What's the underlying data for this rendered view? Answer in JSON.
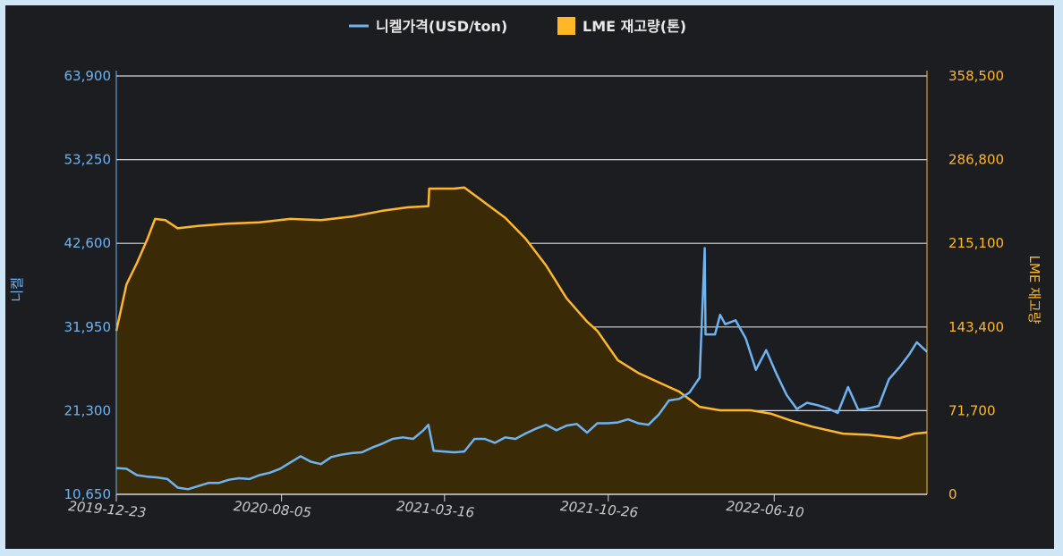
{
  "chart_data": {
    "type": "line",
    "legend": {
      "position": "top-center",
      "items": [
        {
          "label": "니켈가격(USD/ton)",
          "color": "#6fb3f0",
          "symbol": "line"
        },
        {
          "label": "LME 재고량(톤)",
          "color": "#ffb728",
          "symbol": "square"
        }
      ]
    },
    "y_left": {
      "label": "니켈",
      "ticks": [
        "63,900",
        "53,250",
        "42,600",
        "31,950",
        "21,300",
        "10,650"
      ],
      "range": [
        10650,
        63900
      ]
    },
    "y_right": {
      "label": "LME 재고량",
      "ticks": [
        "358,500",
        "286,800",
        "215,100",
        "143,400",
        "71,700",
        "0"
      ],
      "range": [
        0,
        358500
      ]
    },
    "x_axis": {
      "ticks": [
        "2019-12-23",
        "2020-08-05",
        "2021-03-16",
        "2021-10-26",
        "2022-06-10"
      ],
      "range": [
        "2019-12-23",
        "2023-01-05"
      ]
    },
    "grid": true,
    "series": [
      {
        "name": "니켈가격(USD/ton)",
        "type": "line",
        "axis": "left",
        "color": "#6fb3f0",
        "points": [
          [
            "2019-12-23",
            14000
          ],
          [
            "2020-01-06",
            13900
          ],
          [
            "2020-01-20",
            13100
          ],
          [
            "2020-02-03",
            12900
          ],
          [
            "2020-02-17",
            12800
          ],
          [
            "2020-03-02",
            12600
          ],
          [
            "2020-03-16",
            11500
          ],
          [
            "2020-03-30",
            11300
          ],
          [
            "2020-04-13",
            11700
          ],
          [
            "2020-04-27",
            12100
          ],
          [
            "2020-05-11",
            12100
          ],
          [
            "2020-05-25",
            12500
          ],
          [
            "2020-06-08",
            12700
          ],
          [
            "2020-06-22",
            12600
          ],
          [
            "2020-07-06",
            13100
          ],
          [
            "2020-07-20",
            13400
          ],
          [
            "2020-08-03",
            13900
          ],
          [
            "2020-08-17",
            14700
          ],
          [
            "2020-08-31",
            15500
          ],
          [
            "2020-09-14",
            14800
          ],
          [
            "2020-09-28",
            14500
          ],
          [
            "2020-10-12",
            15400
          ],
          [
            "2020-10-26",
            15700
          ],
          [
            "2020-11-09",
            15900
          ],
          [
            "2020-11-23",
            16000
          ],
          [
            "2020-12-07",
            16600
          ],
          [
            "2020-12-21",
            17100
          ],
          [
            "2021-01-04",
            17700
          ],
          [
            "2021-01-18",
            17900
          ],
          [
            "2021-02-01",
            17700
          ],
          [
            "2021-02-15",
            18800
          ],
          [
            "2021-02-22",
            19500
          ],
          [
            "2021-03-01",
            16200
          ],
          [
            "2021-03-15",
            16100
          ],
          [
            "2021-03-29",
            16000
          ],
          [
            "2021-04-12",
            16100
          ],
          [
            "2021-04-26",
            17700
          ],
          [
            "2021-05-10",
            17700
          ],
          [
            "2021-05-24",
            17200
          ],
          [
            "2021-06-07",
            17900
          ],
          [
            "2021-06-21",
            17700
          ],
          [
            "2021-07-05",
            18400
          ],
          [
            "2021-07-19",
            19000
          ],
          [
            "2021-08-02",
            19500
          ],
          [
            "2021-08-16",
            18800
          ],
          [
            "2021-08-30",
            19400
          ],
          [
            "2021-09-13",
            19600
          ],
          [
            "2021-09-27",
            18500
          ],
          [
            "2021-10-11",
            19700
          ],
          [
            "2021-10-25",
            19700
          ],
          [
            "2021-11-08",
            19800
          ],
          [
            "2021-11-22",
            20200
          ],
          [
            "2021-12-06",
            19700
          ],
          [
            "2021-12-20",
            19500
          ],
          [
            "2022-01-03",
            20800
          ],
          [
            "2022-01-17",
            22600
          ],
          [
            "2022-01-31",
            22800
          ],
          [
            "2022-02-14",
            23600
          ],
          [
            "2022-02-28",
            25500
          ],
          [
            "2022-03-07",
            42000
          ],
          [
            "2022-03-08",
            31000
          ],
          [
            "2022-03-21",
            31000
          ],
          [
            "2022-03-28",
            33500
          ],
          [
            "2022-04-04",
            32300
          ],
          [
            "2022-04-18",
            32800
          ],
          [
            "2022-05-02",
            30500
          ],
          [
            "2022-05-16",
            26500
          ],
          [
            "2022-05-30",
            29000
          ],
          [
            "2022-06-13",
            26000
          ],
          [
            "2022-06-27",
            23300
          ],
          [
            "2022-07-11",
            21500
          ],
          [
            "2022-07-25",
            22300
          ],
          [
            "2022-08-08",
            22000
          ],
          [
            "2022-08-22",
            21600
          ],
          [
            "2022-09-05",
            21000
          ],
          [
            "2022-09-19",
            24300
          ],
          [
            "2022-10-03",
            21400
          ],
          [
            "2022-10-17",
            21600
          ],
          [
            "2022-10-31",
            21900
          ],
          [
            "2022-11-14",
            25300
          ],
          [
            "2022-11-28",
            26800
          ],
          [
            "2022-12-12",
            28500
          ],
          [
            "2022-12-22",
            30000
          ],
          [
            "2023-01-05",
            28800
          ]
        ]
      },
      {
        "name": "LME 재고량(톤)",
        "type": "area",
        "axis": "right",
        "color": "#ffb728",
        "fill": "#3a2a05",
        "points": [
          [
            "2019-12-23",
            140000
          ],
          [
            "2020-01-06",
            180000
          ],
          [
            "2020-01-20",
            198000
          ],
          [
            "2020-02-03",
            218000
          ],
          [
            "2020-02-14",
            236000
          ],
          [
            "2020-02-28",
            235000
          ],
          [
            "2020-03-16",
            228000
          ],
          [
            "2020-04-13",
            230000
          ],
          [
            "2020-05-25",
            232000
          ],
          [
            "2020-07-06",
            233000
          ],
          [
            "2020-08-17",
            236000
          ],
          [
            "2020-09-28",
            235000
          ],
          [
            "2020-11-09",
            238000
          ],
          [
            "2020-12-21",
            243000
          ],
          [
            "2021-01-25",
            246000
          ],
          [
            "2021-02-22",
            247000
          ],
          [
            "2021-02-23",
            262000
          ],
          [
            "2021-03-29",
            262000
          ],
          [
            "2021-04-12",
            263000
          ],
          [
            "2021-05-10",
            250000
          ],
          [
            "2021-06-07",
            237000
          ],
          [
            "2021-07-05",
            219000
          ],
          [
            "2021-08-02",
            196000
          ],
          [
            "2021-08-30",
            168000
          ],
          [
            "2021-09-27",
            148000
          ],
          [
            "2021-10-11",
            140000
          ],
          [
            "2021-11-08",
            115000
          ],
          [
            "2021-12-06",
            104000
          ],
          [
            "2022-01-03",
            96000
          ],
          [
            "2022-01-31",
            88000
          ],
          [
            "2022-02-28",
            75000
          ],
          [
            "2022-03-28",
            72000
          ],
          [
            "2022-05-09",
            72000
          ],
          [
            "2022-06-06",
            69000
          ],
          [
            "2022-07-04",
            63000
          ],
          [
            "2022-08-01",
            58000
          ],
          [
            "2022-09-12",
            52000
          ],
          [
            "2022-10-17",
            51000
          ],
          [
            "2022-11-28",
            48000
          ],
          [
            "2022-12-19",
            52000
          ],
          [
            "2023-01-05",
            53000
          ]
        ]
      }
    ]
  }
}
